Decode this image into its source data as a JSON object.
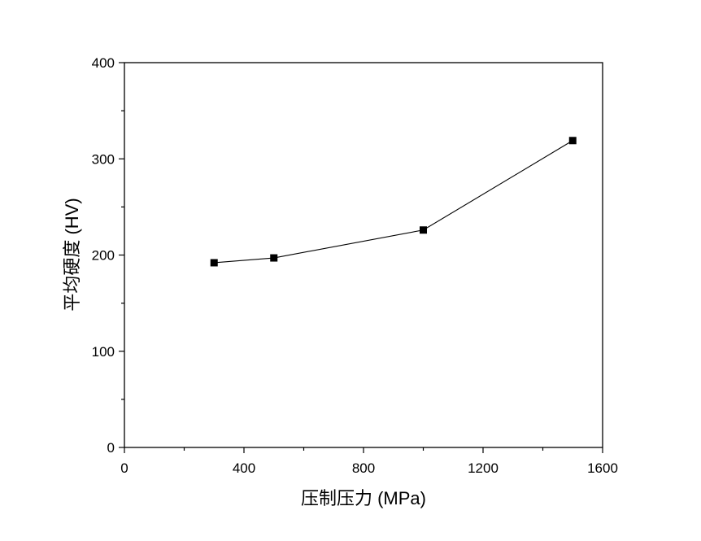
{
  "chart_data": {
    "type": "line",
    "title": "",
    "xlabel": "压制压力 (MPa)",
    "ylabel": "平均硬度 (HV)",
    "xlim": [
      0,
      1600
    ],
    "ylim": [
      0,
      400
    ],
    "x_ticks": [
      0,
      400,
      800,
      1200,
      1600
    ],
    "y_ticks": [
      0,
      100,
      200,
      300,
      400
    ],
    "x_tick_labels": [
      "0",
      "400",
      "800",
      "1200",
      "1600"
    ],
    "y_tick_labels": [
      "0",
      "100",
      "200",
      "300",
      "400"
    ],
    "grid": false,
    "series": [
      {
        "marker": "square",
        "color": "#000000",
        "x": [
          300,
          500,
          1000,
          1500
        ],
        "y": [
          192,
          197,
          226,
          319
        ]
      }
    ]
  }
}
